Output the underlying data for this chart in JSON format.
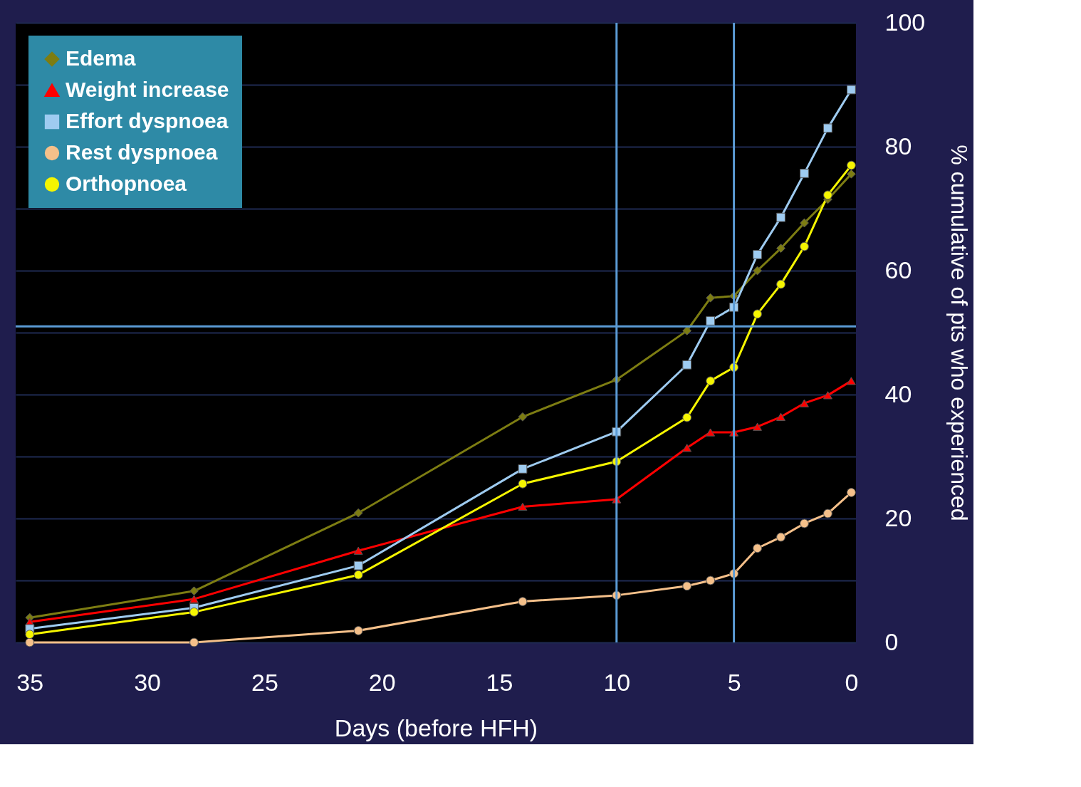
{
  "chart_data": {
    "type": "line",
    "x": [
      35,
      28,
      21,
      14,
      10,
      7,
      6,
      5,
      4,
      3,
      2,
      1,
      0
    ],
    "xlabel": "Days (before HFH)",
    "ylabel": "% cumulative of pts who experienced",
    "xlim": [
      35.6,
      -0.2
    ],
    "xticks": [
      35,
      30,
      25,
      20,
      15,
      10,
      5,
      0
    ],
    "ylim": [
      0,
      100
    ],
    "yticks": [
      0,
      {
        "value": 10,
        "label": null
      },
      20,
      {
        "value": 30,
        "label": null
      },
      40,
      {
        "value": 50,
        "label": null
      },
      60,
      {
        "value": 70,
        "label": null
      },
      80,
      {
        "value": 90,
        "label": null
      },
      100
    ],
    "grid": "y",
    "legend": "top left",
    "line_style": "solid",
    "series": [
      {
        "name": "Edema",
        "color": "#7d7d12",
        "marker": "diamond",
        "values": [
          4,
          8.3,
          20.9,
          36.4,
          42.4,
          50.3,
          55.6,
          55.9,
          60,
          63.6,
          67.7,
          71.5,
          75.6
        ]
      },
      {
        "name": "Weight increase",
        "color": "#ff0000",
        "marker": "triangle",
        "values": [
          3.3,
          7,
          14.8,
          21.9,
          23.1,
          31.4,
          33.9,
          33.9,
          34.8,
          36.4,
          38.6,
          39.9,
          42.2
        ]
      },
      {
        "name": "Effort dyspnoea",
        "color": "#9ecbf0",
        "marker": "square",
        "values": [
          2.2,
          5.6,
          12.4,
          28,
          34,
          44.8,
          51.9,
          54.1,
          62.6,
          68.6,
          75.7,
          83,
          89.2
        ]
      },
      {
        "name": "Rest dyspnoea",
        "color": "#f5c08a",
        "marker": "circle",
        "values": [
          0,
          0,
          1.9,
          6.6,
          7.6,
          9.1,
          10,
          11.1,
          15.2,
          17,
          19.2,
          20.8,
          24.2
        ]
      },
      {
        "name": "Orthopnoea",
        "color": "#f5f500",
        "marker": "circle",
        "values": [
          1.3,
          4.9,
          10.9,
          25.6,
          29.2,
          36.3,
          42.2,
          44.4,
          53,
          57.8,
          63.9,
          72.2,
          77
        ]
      }
    ],
    "ref_lines": [
      {
        "axis": "x",
        "value": 10,
        "color": "#5b9bd5"
      },
      {
        "axis": "x",
        "value": 5,
        "color": "#5b9bd5"
      },
      {
        "axis": "y",
        "value": 51,
        "color": "#5b9bd5"
      }
    ]
  }
}
